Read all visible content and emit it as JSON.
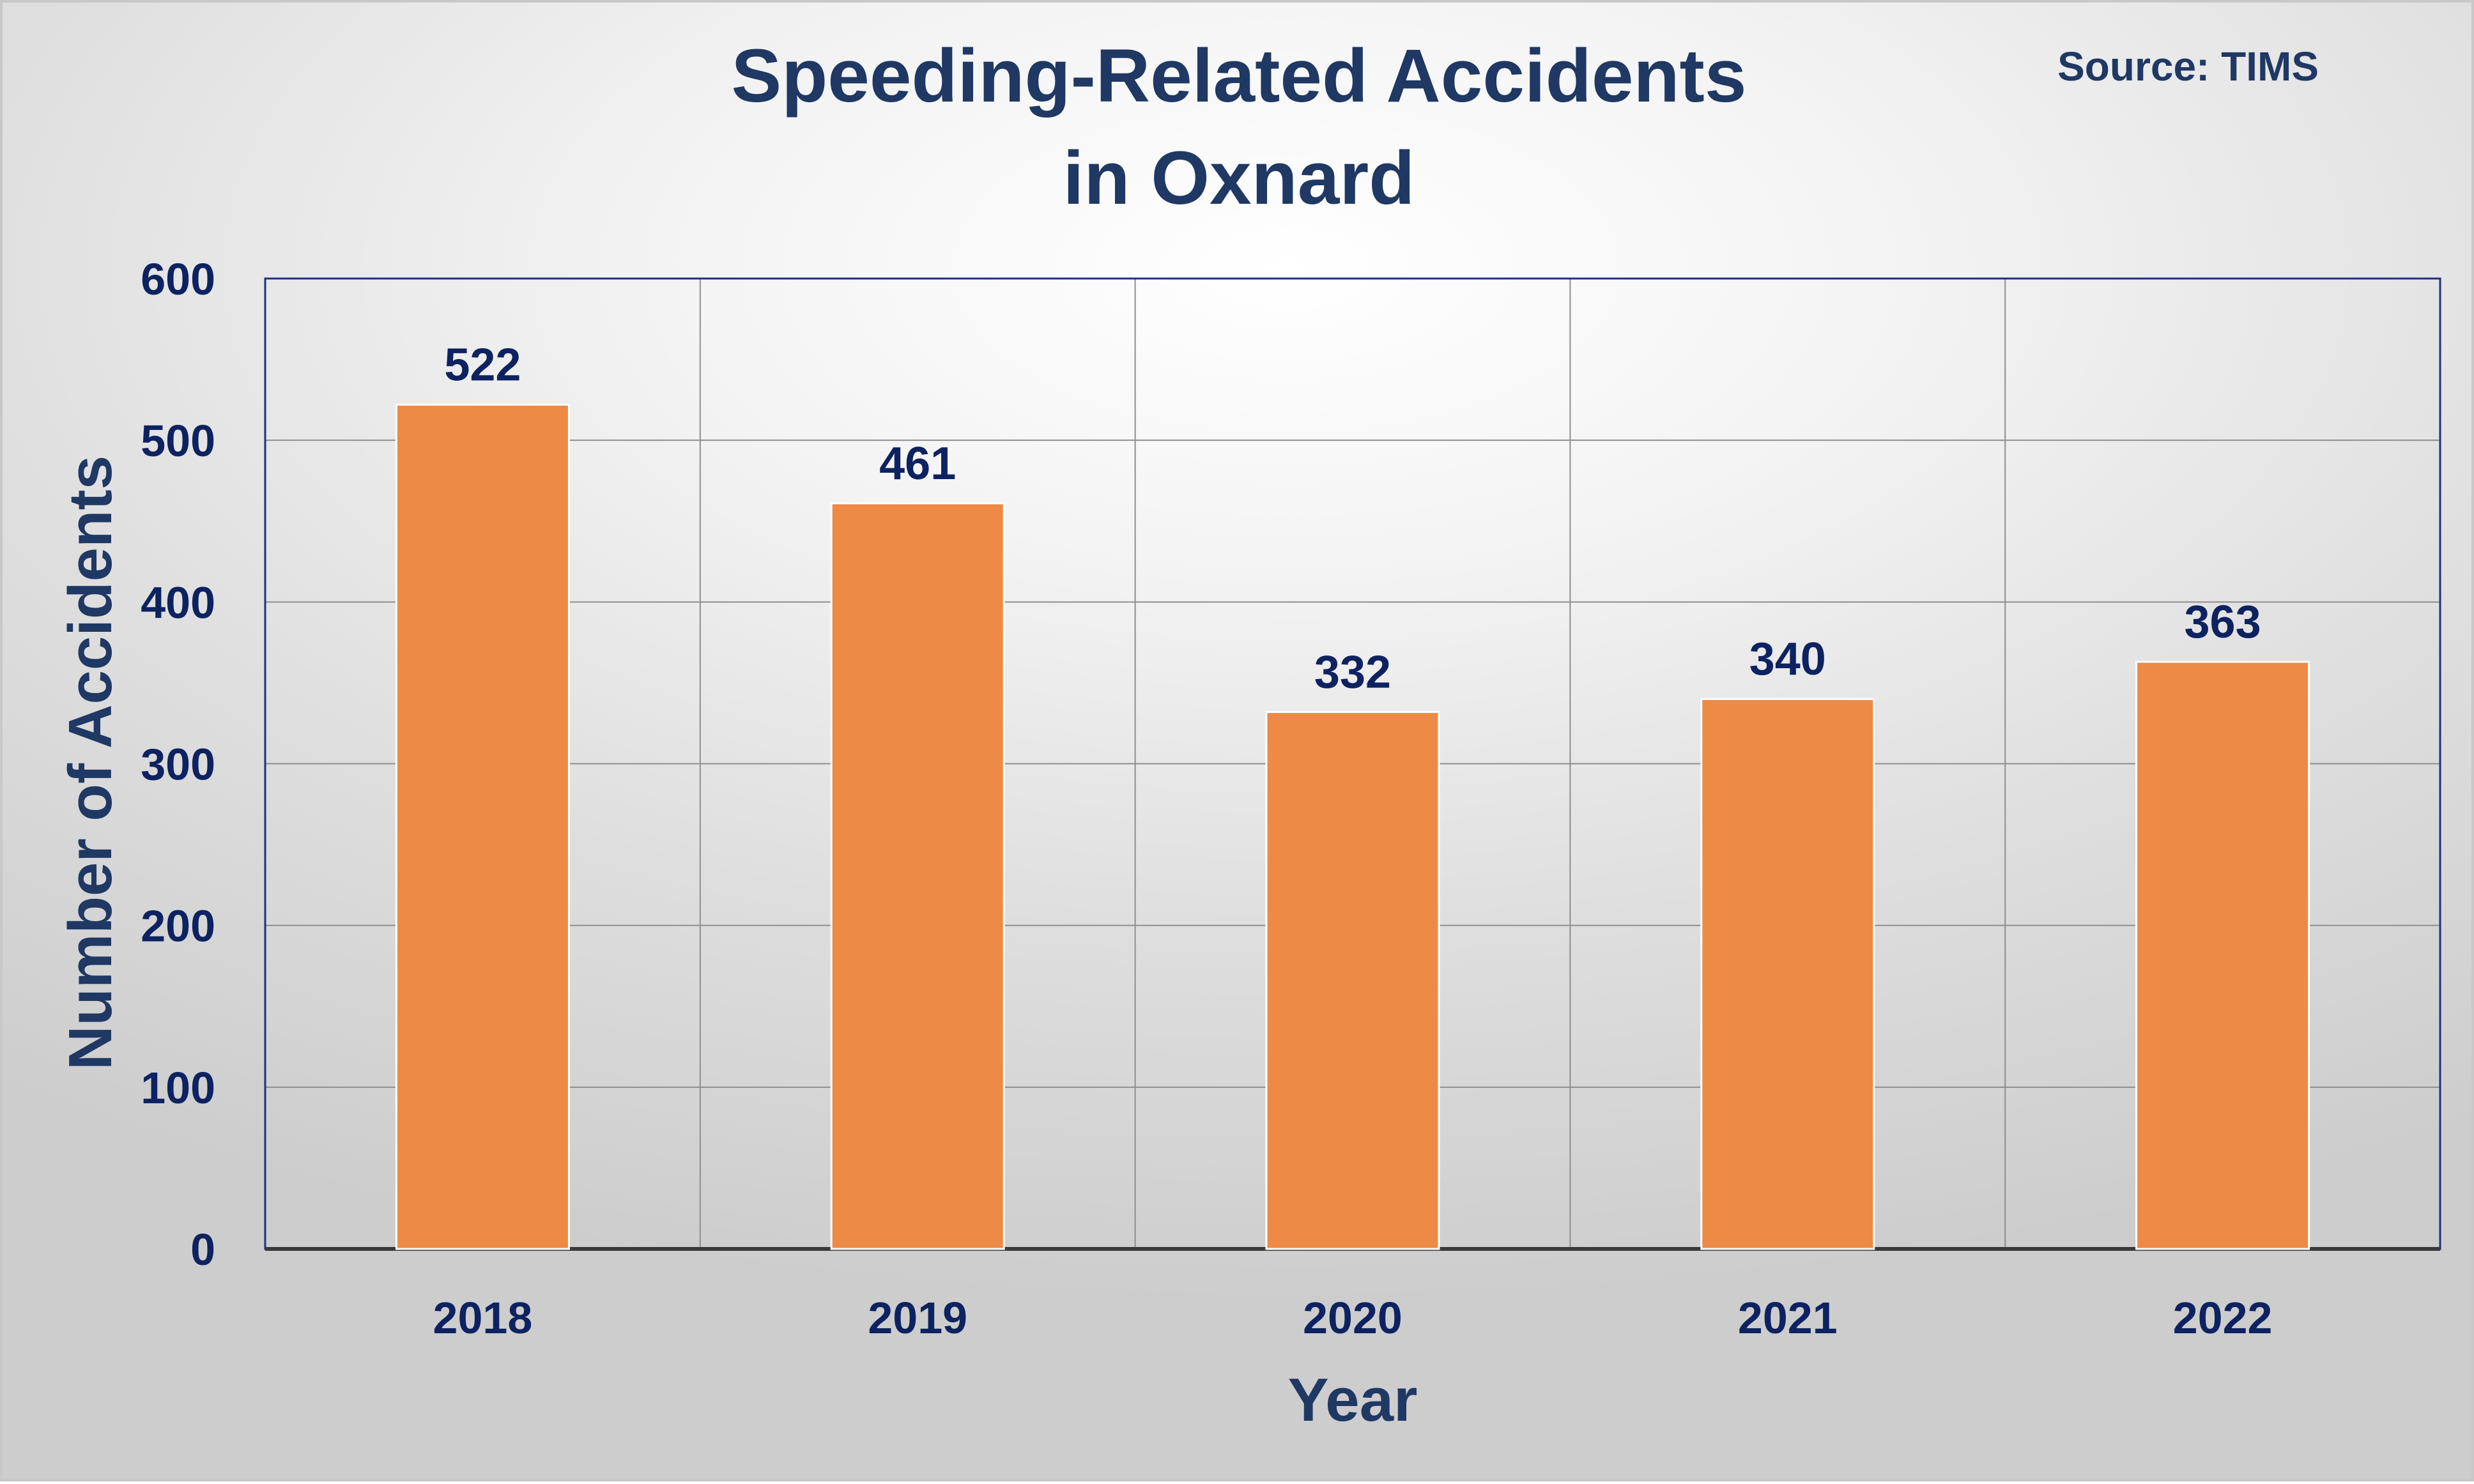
{
  "chart_data": {
    "type": "bar",
    "title_lines": [
      "Speeding-Related Accidents",
      "in Oxnard"
    ],
    "source": "Source: TIMS",
    "xlabel": "Year",
    "ylabel": "Number of Accidents",
    "categories": [
      "2018",
      "2019",
      "2020",
      "2021",
      "2022"
    ],
    "values": [
      522,
      461,
      332,
      340,
      363
    ],
    "ylim": [
      0,
      600
    ],
    "yticks": [
      0,
      100,
      200,
      300,
      400,
      500,
      600
    ],
    "grid": true,
    "bar_color": "#ed8a45",
    "text_color": "#1f3864"
  }
}
